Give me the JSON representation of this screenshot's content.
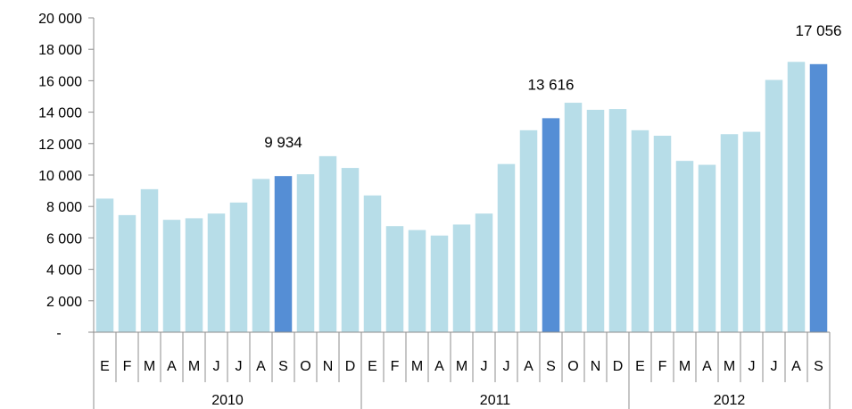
{
  "chart_data": {
    "type": "bar",
    "title": "",
    "xlabel": "",
    "ylabel": "",
    "ylim": [
      0,
      20000
    ],
    "y_ticks": [
      "-",
      "2 000",
      "4 000",
      "6 000",
      "8 000",
      "10 000",
      "12 000",
      "14 000",
      "16 000",
      "18 000",
      "20 000"
    ],
    "years": [
      "2010",
      "2011",
      "2012"
    ],
    "categories": [
      "E",
      "F",
      "M",
      "A",
      "M",
      "J",
      "J",
      "A",
      "S",
      "O",
      "N",
      "D",
      "E",
      "F",
      "M",
      "A",
      "M",
      "J",
      "J",
      "A",
      "S",
      "O",
      "N",
      "D",
      "E",
      "F",
      "M",
      "A",
      "M",
      "J",
      "J",
      "A",
      "S"
    ],
    "category_year": [
      "2010",
      "2010",
      "2010",
      "2010",
      "2010",
      "2010",
      "2010",
      "2010",
      "2010",
      "2010",
      "2010",
      "2010",
      "2011",
      "2011",
      "2011",
      "2011",
      "2011",
      "2011",
      "2011",
      "2011",
      "2011",
      "2011",
      "2011",
      "2011",
      "2012",
      "2012",
      "2012",
      "2012",
      "2012",
      "2012",
      "2012",
      "2012",
      "2012"
    ],
    "values": [
      8500,
      7450,
      9100,
      7150,
      7250,
      7550,
      8250,
      9750,
      9934,
      10050,
      11200,
      10450,
      8700,
      6750,
      6500,
      6150,
      6850,
      7550,
      10700,
      12850,
      13616,
      14600,
      14150,
      14200,
      12850,
      12500,
      10900,
      10650,
      12600,
      12750,
      16050,
      17200,
      17056
    ],
    "highlighted": [
      false,
      false,
      false,
      false,
      false,
      false,
      false,
      false,
      true,
      false,
      false,
      false,
      false,
      false,
      false,
      false,
      false,
      false,
      false,
      false,
      true,
      false,
      false,
      false,
      false,
      false,
      false,
      false,
      false,
      false,
      false,
      false,
      true
    ],
    "data_labels": [
      {
        "index": 8,
        "text": "9 934"
      },
      {
        "index": 20,
        "text": "13 616"
      },
      {
        "index": 32,
        "text": "17 056"
      }
    ],
    "grid": false,
    "legend": "none",
    "colors": {
      "bar": "#b7dde8",
      "highlight": "#558ed5",
      "axis": "#8c8c8c"
    }
  }
}
